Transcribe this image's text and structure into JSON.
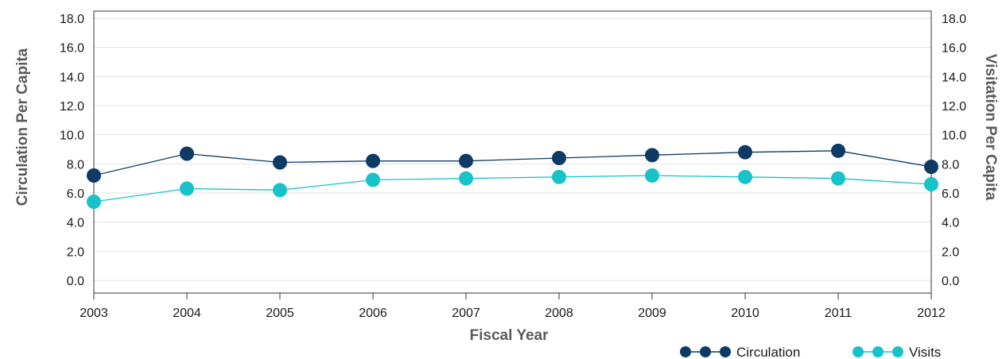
{
  "chart_data": {
    "type": "line",
    "title": "",
    "xlabel": "Fiscal Year",
    "ylabel_left": "Circulation Per Capita",
    "ylabel_right": "Visitation Per Capita",
    "ylim": [
      0,
      18
    ],
    "yticks": [
      "0.0",
      "2.0",
      "4.0",
      "6.0",
      "8.0",
      "10.0",
      "12.0",
      "14.0",
      "16.0",
      "18.0"
    ],
    "categories": [
      "2003",
      "2004",
      "2005",
      "2006",
      "2007",
      "2008",
      "2009",
      "2010",
      "2011",
      "2012"
    ],
    "grid": true,
    "legend_position": "bottom-right",
    "series": [
      {
        "name": "Circulation",
        "color": "#0d3b66",
        "values": [
          7.2,
          8.7,
          8.1,
          8.2,
          8.2,
          8.4,
          8.6,
          8.8,
          8.9,
          7.8
        ]
      },
      {
        "name": "Visits",
        "color": "#17c3c9",
        "values": [
          5.4,
          6.3,
          6.2,
          6.9,
          7.0,
          7.1,
          7.2,
          7.1,
          7.0,
          6.6
        ]
      }
    ]
  }
}
